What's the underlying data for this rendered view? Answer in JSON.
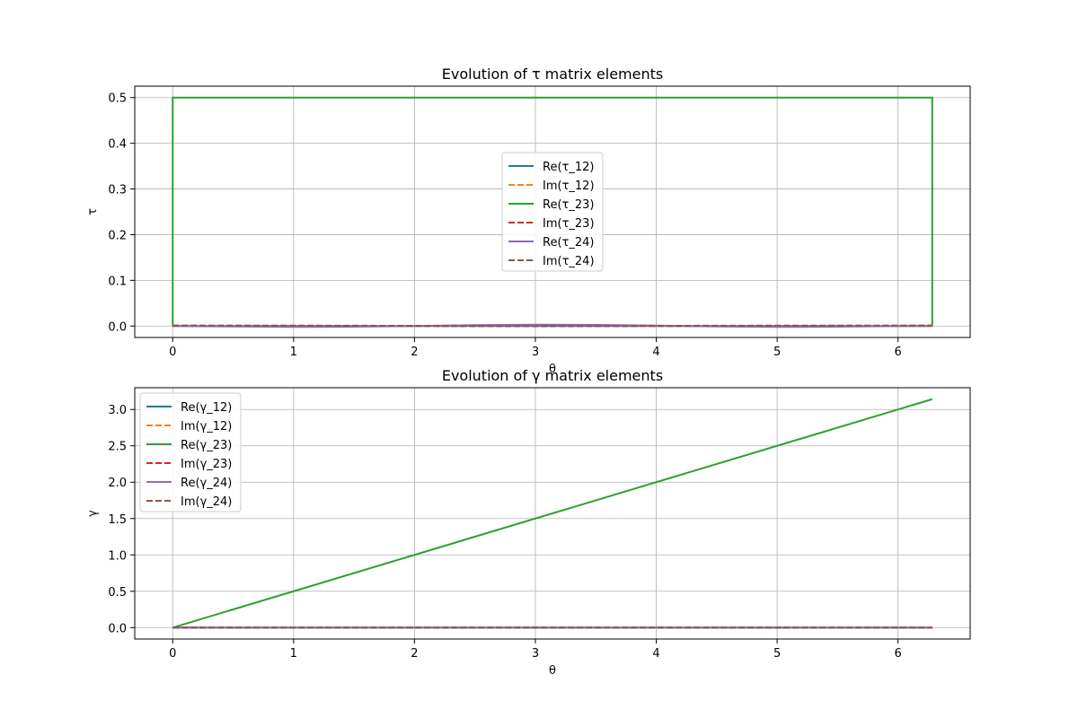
{
  "chart_data": [
    {
      "type": "line",
      "title": "Evolution of τ matrix elements",
      "xlabel": "θ",
      "ylabel": "τ",
      "xlim": [
        -0.314,
        6.597
      ],
      "ylim": [
        -0.025,
        0.525
      ],
      "xticks": [
        0,
        1,
        2,
        3,
        4,
        5,
        6
      ],
      "yticks": [
        0.0,
        0.1,
        0.2,
        0.3,
        0.4,
        0.5
      ],
      "ytick_labels": [
        "0.0",
        "0.1",
        "0.2",
        "0.3",
        "0.4",
        "0.5"
      ],
      "grid": true,
      "legend": {
        "placement": "center",
        "entries": [
          "Re(τ_12)",
          "Im(τ_12)",
          "Re(τ_23)",
          "Im(τ_23)",
          "Re(τ_24)",
          "Im(τ_24)"
        ]
      },
      "series": [
        {
          "name": "Re(τ_12)",
          "color": "#1f77b4",
          "dash": false,
          "x": [
            0,
            6.283
          ],
          "y": [
            0,
            0
          ]
        },
        {
          "name": "Im(τ_12)",
          "color": "#ff7f0e",
          "dash": true,
          "x": [
            0,
            1,
            2,
            3,
            4,
            5,
            6.283
          ],
          "y": [
            0,
            0,
            0,
            0,
            0,
            0,
            0
          ]
        },
        {
          "name": "Re(τ_23)",
          "color": "#2ca02c",
          "dash": false,
          "x": [
            0,
            0,
            6.283,
            6.283
          ],
          "y": [
            0,
            0.5,
            0.5,
            0
          ]
        },
        {
          "name": "Im(τ_23)",
          "color": "#d62728",
          "dash": true,
          "x": [
            0,
            1,
            2,
            3,
            4,
            5,
            6.283
          ],
          "y": [
            0.001,
            0.0005,
            0,
            -0.0005,
            0,
            0.0005,
            0.001
          ]
        },
        {
          "name": "Re(τ_24)",
          "color": "#9467bd",
          "dash": false,
          "x": [
            0,
            0.5,
            1,
            1.5,
            2,
            2.5,
            3,
            3.5,
            4,
            4.5,
            5,
            5.5,
            6,
            6.283
          ],
          "y": [
            0,
            -0.001,
            -0.002,
            -0.0015,
            0,
            0.002,
            0.003,
            0.0025,
            0.001,
            -0.001,
            -0.002,
            -0.0015,
            0,
            0
          ]
        },
        {
          "name": "Im(τ_24)",
          "color": "#8c564b",
          "dash": true,
          "x": [
            0,
            1,
            2,
            3,
            4,
            5,
            6.283
          ],
          "y": [
            0.001,
            0.001,
            0.0005,
            0,
            0.0005,
            0.001,
            0.001
          ]
        }
      ]
    },
    {
      "type": "line",
      "title": "Evolution of γ matrix elements",
      "xlabel": "θ",
      "ylabel": "γ",
      "xlim": [
        -0.314,
        6.597
      ],
      "ylim": [
        -0.157,
        3.299
      ],
      "xticks": [
        0,
        1,
        2,
        3,
        4,
        5,
        6
      ],
      "yticks": [
        0.0,
        0.5,
        1.0,
        1.5,
        2.0,
        2.5,
        3.0
      ],
      "ytick_labels": [
        "0.0",
        "0.5",
        "1.0",
        "1.5",
        "2.0",
        "2.5",
        "3.0"
      ],
      "grid": true,
      "legend": {
        "placement": "upper-left",
        "entries": [
          "Re(γ_12)",
          "Im(γ_12)",
          "Re(γ_23)",
          "Im(γ_23)",
          "Re(γ_24)",
          "Im(γ_24)"
        ]
      },
      "series": [
        {
          "name": "Re(γ_12)",
          "color": "#1f77b4",
          "dash": false,
          "x": [
            0,
            6.283
          ],
          "y": [
            0,
            0
          ]
        },
        {
          "name": "Im(γ_12)",
          "color": "#ff7f0e",
          "dash": true,
          "x": [
            0,
            6.283
          ],
          "y": [
            0,
            0
          ]
        },
        {
          "name": "Re(γ_23)",
          "color": "#2ca02c",
          "dash": false,
          "x": [
            0,
            6.283
          ],
          "y": [
            0,
            3.1416
          ]
        },
        {
          "name": "Im(γ_23)",
          "color": "#d62728",
          "dash": true,
          "x": [
            0,
            6.283
          ],
          "y": [
            0,
            0
          ]
        },
        {
          "name": "Re(γ_24)",
          "color": "#9467bd",
          "dash": false,
          "x": [
            0,
            6.283
          ],
          "y": [
            0,
            0
          ]
        },
        {
          "name": "Im(γ_24)",
          "color": "#8c564b",
          "dash": true,
          "x": [
            0,
            6.283
          ],
          "y": [
            0,
            0
          ]
        }
      ]
    }
  ]
}
